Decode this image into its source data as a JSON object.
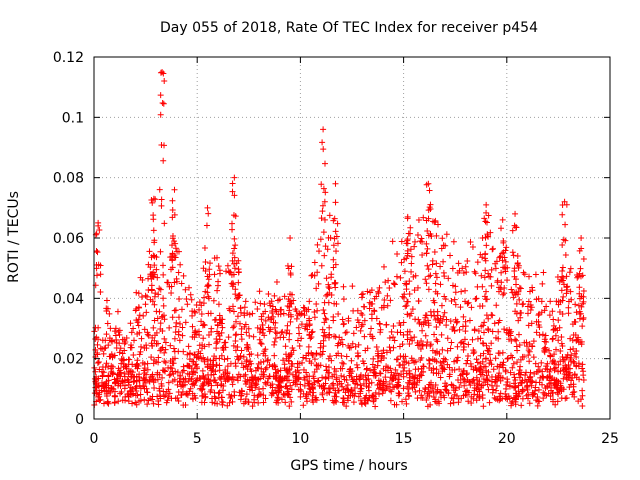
{
  "chart_data": {
    "type": "scatter",
    "title": "Day 055 of 2018, Rate Of TEC Index for receiver p454",
    "xlabel": "GPS time / hours",
    "ylabel": "ROTI / TECUs",
    "xlim": [
      0,
      25
    ],
    "ylim": [
      0,
      0.12
    ],
    "xticks": [
      "0",
      "5",
      "10",
      "15",
      "20",
      "25"
    ],
    "yticks": [
      "0",
      "0.02",
      "0.04",
      "0.06",
      "0.08",
      "0.1",
      "0.12"
    ],
    "grid": true,
    "marker": "+",
    "color": "#ff0000",
    "series": [
      {
        "name": "ROTI",
        "envelope": {
          "x": [
            0,
            0.3,
            1.0,
            1.7,
            2.5,
            3.0,
            3.3,
            4.0,
            4.5,
            5.0,
            5.5,
            6.0,
            6.8,
            7.5,
            8.5,
            9.5,
            10.3,
            11.0,
            11.2,
            11.8,
            12.5,
            13.3,
            14.0,
            15.0,
            16.2,
            17.0,
            18.0,
            19.0,
            20.0,
            21.0,
            22.0,
            23.0,
            23.7
          ],
          "typical_max": [
            0.02,
            0.03,
            0.025,
            0.02,
            0.045,
            0.05,
            0.04,
            0.05,
            0.035,
            0.03,
            0.04,
            0.04,
            0.045,
            0.03,
            0.035,
            0.03,
            0.03,
            0.05,
            0.06,
            0.04,
            0.03,
            0.03,
            0.04,
            0.05,
            0.06,
            0.05,
            0.045,
            0.05,
            0.045,
            0.04,
            0.035,
            0.04,
            0.045
          ]
        },
        "peaks": [
          {
            "x": 0.2,
            "y": 0.065
          },
          {
            "x": 2.9,
            "y": 0.073
          },
          {
            "x": 3.3,
            "y": 0.115
          },
          {
            "x": 3.9,
            "y": 0.076
          },
          {
            "x": 5.5,
            "y": 0.07
          },
          {
            "x": 6.8,
            "y": 0.08
          },
          {
            "x": 9.5,
            "y": 0.06
          },
          {
            "x": 11.1,
            "y": 0.096
          },
          {
            "x": 11.7,
            "y": 0.078
          },
          {
            "x": 15.2,
            "y": 0.067
          },
          {
            "x": 16.2,
            "y": 0.078
          },
          {
            "x": 19.0,
            "y": 0.071
          },
          {
            "x": 19.8,
            "y": 0.066
          },
          {
            "x": 20.4,
            "y": 0.068
          },
          {
            "x": 22.8,
            "y": 0.072
          },
          {
            "x": 23.6,
            "y": 0.06
          }
        ],
        "start_hour": 0,
        "end_hour": 23.75
      }
    ]
  }
}
